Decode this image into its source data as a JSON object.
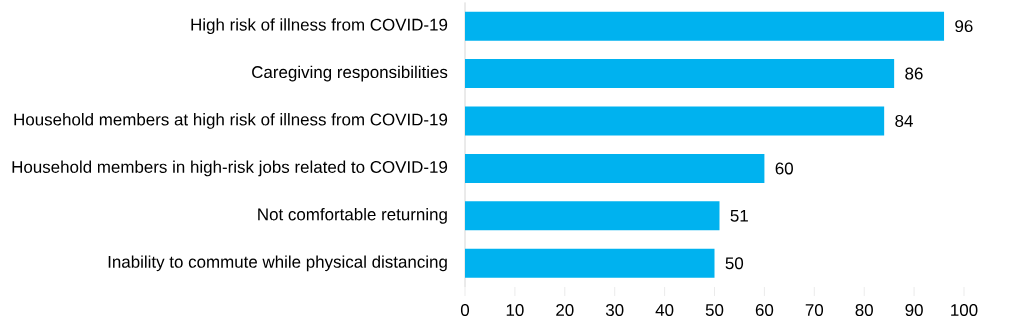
{
  "chart_data": {
    "type": "bar",
    "orientation": "horizontal",
    "categories": [
      "High risk of illness from COVID-19",
      "Caregiving responsibilities",
      "Household members at high risk of illness from COVID-19",
      "Household members in high-risk jobs related to COVID-19",
      "Not comfortable returning",
      "Inability to commute while physical distancing"
    ],
    "values": [
      96,
      86,
      84,
      60,
      51,
      50
    ],
    "color": "#00b2ef",
    "xlim": [
      0,
      100
    ],
    "xticks": [
      0,
      10,
      20,
      30,
      40,
      50,
      60,
      70,
      80,
      90,
      100
    ],
    "data_labels": true,
    "grid": false
  }
}
